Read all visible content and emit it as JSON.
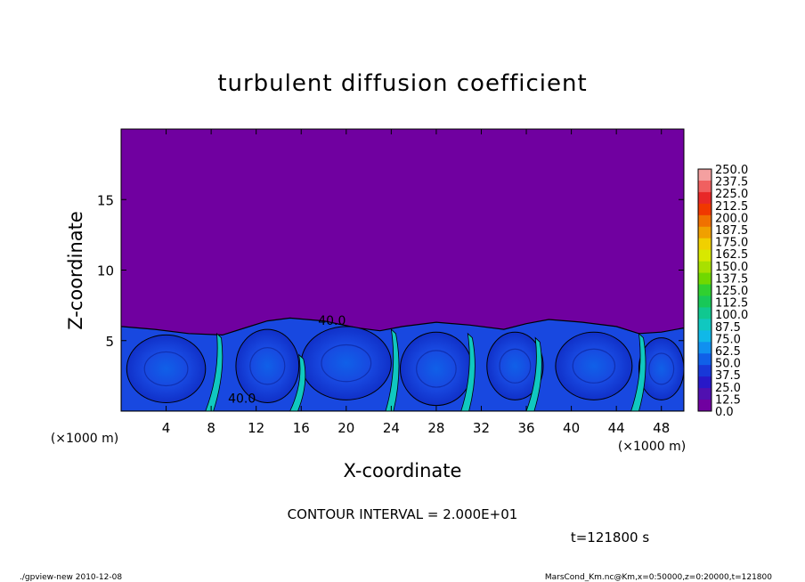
{
  "chart_data": {
    "type": "heatmap",
    "title": "turbulent diffusion coefficient",
    "xlabel": "X-coordinate",
    "ylabel": "Z-coordinate",
    "x_unit": "(×1000 m)",
    "y_unit": "(×1000 m)",
    "xlim": [
      0,
      50
    ],
    "ylim": [
      0,
      20
    ],
    "x_ticks": [
      4,
      8,
      12,
      16,
      20,
      24,
      28,
      32,
      36,
      40,
      44,
      48
    ],
    "y_ticks": [
      5,
      10,
      15
    ],
    "colorbar": {
      "levels": [
        "250.0",
        "237.5",
        "225.0",
        "212.5",
        "200.0",
        "187.5",
        "175.0",
        "162.5",
        "150.0",
        "137.5",
        "125.0",
        "112.5",
        "100.0",
        "87.5",
        "75.0",
        "62.5",
        "50.0",
        "37.5",
        "25.0",
        "12.5",
        "0.0"
      ],
      "colors": [
        "#f4a0a0",
        "#f06060",
        "#e82828",
        "#f03800",
        "#f07000",
        "#f0a000",
        "#f0d000",
        "#d8e800",
        "#a8e000",
        "#70d800",
        "#30d030",
        "#18c858",
        "#10c890",
        "#10c8c0",
        "#10b8e8",
        "#1090f0",
        "#1060e8",
        "#1838d8",
        "#2818c8",
        "#5010b0",
        "#7000a0"
      ]
    },
    "contour_labels": [
      "40.0",
      "40.0"
    ],
    "field": {
      "background_value": 0.0,
      "background_color": "#7000a0",
      "mixed_layer_top": 6,
      "mixed_layer_color": "#1848e0"
    }
  },
  "footer": {
    "contour_interval": "CONTOUR INTERVAL = 2.000E+01",
    "time": "t=121800 s",
    "program": "./gpview-new   2010-12-08",
    "file": "MarsCond_Km.nc@Km,x=0:50000,z=0:20000,t=121800"
  }
}
